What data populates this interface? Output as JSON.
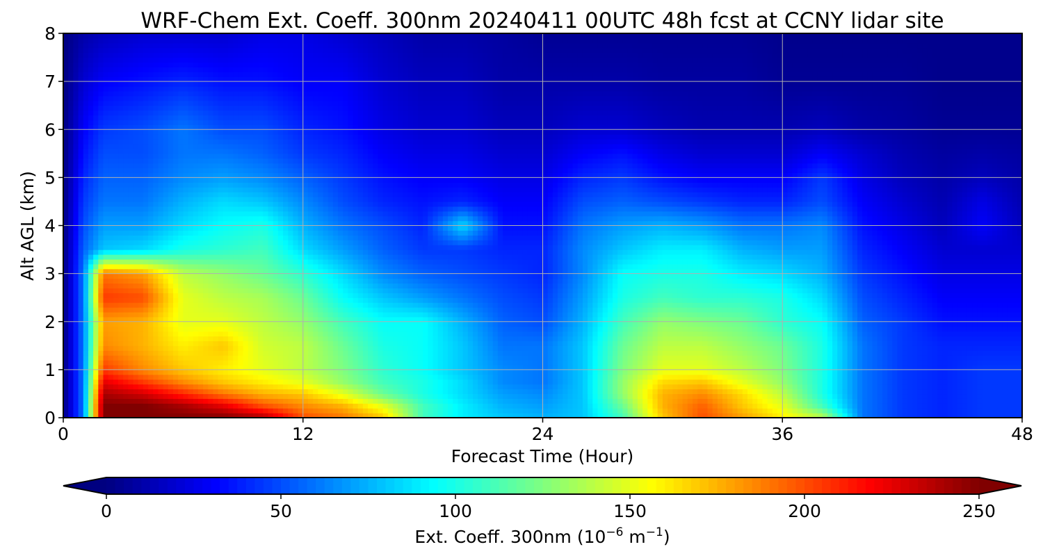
{
  "chart_data": {
    "type": "heatmap",
    "title": "WRF-Chem Ext. Coeff. 300nm  20240411 00UTC 48h fcst at CCNY lidar site",
    "xlabel": "Forecast Time (Hour)",
    "ylabel": "Alt AGL (km)",
    "xlim": [
      0,
      48
    ],
    "ylim": [
      0,
      8
    ],
    "xticks": [
      "0",
      "12",
      "24",
      "36",
      "48"
    ],
    "yticks": [
      "0",
      "1",
      "2",
      "3",
      "4",
      "5",
      "6",
      "7",
      "8"
    ],
    "grid": true,
    "colormap": "jet",
    "colorbar": {
      "label": "Ext. Coeff. 300nm  (10⁻⁶ m⁻¹)",
      "label_text": "Ext. Coeff. 300nm",
      "unit_base": "(10",
      "unit_exp1": "−6",
      "unit_mid": " m",
      "unit_exp2": "−1",
      "unit_end": ")",
      "range": [
        0,
        250
      ],
      "ticks": [
        "0",
        "50",
        "100",
        "150",
        "200",
        "250"
      ],
      "extend": "both",
      "orientation": "horizontal"
    },
    "z_units": "1e-6 m^-1",
    "x_hours": [
      0,
      1,
      2,
      4,
      6,
      8,
      10,
      12,
      14,
      16,
      18,
      20,
      22,
      24,
      26,
      28,
      30,
      32,
      34,
      36,
      38,
      40,
      42,
      44,
      46,
      48
    ],
    "y_km": [
      0,
      0.25,
      0.5,
      0.75,
      1,
      1.5,
      2,
      2.5,
      3,
      3.5,
      4,
      4.5,
      5,
      5.5,
      6,
      7,
      8
    ],
    "z": [
      [
        0,
        60,
        250,
        250,
        250,
        250,
        240,
        200,
        190,
        170,
        110,
        90,
        80,
        75,
        80,
        110,
        170,
        200,
        180,
        160,
        140,
        60,
        45,
        40,
        45,
        45
      ],
      [
        0,
        60,
        250,
        250,
        240,
        225,
        200,
        185,
        175,
        150,
        110,
        90,
        75,
        70,
        80,
        120,
        175,
        195,
        170,
        150,
        110,
        60,
        45,
        40,
        45,
        45
      ],
      [
        0,
        60,
        240,
        230,
        210,
        190,
        175,
        170,
        150,
        120,
        100,
        85,
        70,
        65,
        80,
        130,
        175,
        185,
        165,
        140,
        100,
        60,
        45,
        40,
        45,
        45
      ],
      [
        0,
        60,
        225,
        205,
        185,
        170,
        160,
        150,
        130,
        110,
        100,
        85,
        65,
        60,
        80,
        130,
        165,
        170,
        150,
        130,
        100,
        60,
        45,
        40,
        45,
        45
      ],
      [
        0,
        60,
        205,
        185,
        170,
        160,
        150,
        140,
        125,
        105,
        95,
        80,
        65,
        60,
        80,
        125,
        150,
        150,
        140,
        125,
        100,
        60,
        45,
        40,
        45,
        45
      ],
      [
        0,
        60,
        185,
        175,
        160,
        170,
        145,
        140,
        120,
        100,
        95,
        80,
        60,
        60,
        80,
        120,
        140,
        140,
        130,
        120,
        100,
        60,
        45,
        40,
        40,
        40
      ],
      [
        0,
        60,
        180,
        175,
        150,
        150,
        140,
        130,
        110,
        95,
        95,
        75,
        55,
        50,
        75,
        110,
        130,
        125,
        120,
        105,
        95,
        55,
        45,
        35,
        35,
        35
      ],
      [
        0,
        60,
        205,
        200,
        150,
        140,
        135,
        120,
        95,
        80,
        70,
        60,
        50,
        45,
        70,
        100,
        110,
        105,
        105,
        100,
        85,
        50,
        40,
        30,
        30,
        30
      ],
      [
        0,
        60,
        190,
        180,
        140,
        130,
        120,
        105,
        85,
        65,
        55,
        50,
        45,
        40,
        65,
        95,
        100,
        100,
        90,
        85,
        75,
        45,
        35,
        25,
        25,
        25
      ],
      [
        0,
        55,
        80,
        85,
        100,
        105,
        110,
        85,
        70,
        55,
        45,
        45,
        40,
        40,
        65,
        80,
        90,
        90,
        75,
        70,
        70,
        40,
        30,
        20,
        20,
        20
      ],
      [
        0,
        50,
        70,
        70,
        85,
        95,
        100,
        75,
        60,
        50,
        40,
        85,
        35,
        35,
        60,
        70,
        75,
        70,
        60,
        60,
        65,
        35,
        25,
        15,
        30,
        15
      ],
      [
        0,
        45,
        60,
        60,
        75,
        85,
        80,
        65,
        50,
        40,
        35,
        40,
        30,
        30,
        50,
        55,
        50,
        45,
        40,
        40,
        50,
        30,
        20,
        12,
        25,
        12
      ],
      [
        0,
        40,
        55,
        55,
        65,
        70,
        65,
        55,
        45,
        35,
        30,
        30,
        25,
        25,
        40,
        45,
        35,
        30,
        30,
        30,
        45,
        25,
        15,
        10,
        15,
        10
      ],
      [
        0,
        35,
        50,
        50,
        60,
        60,
        55,
        45,
        40,
        30,
        25,
        25,
        20,
        20,
        30,
        35,
        25,
        20,
        20,
        20,
        30,
        20,
        12,
        8,
        10,
        8
      ],
      [
        0,
        30,
        45,
        50,
        60,
        50,
        50,
        40,
        35,
        25,
        20,
        20,
        15,
        15,
        20,
        20,
        15,
        12,
        12,
        12,
        15,
        10,
        8,
        5,
        5,
        5
      ],
      [
        0,
        20,
        30,
        35,
        40,
        35,
        35,
        30,
        30,
        20,
        15,
        15,
        10,
        10,
        10,
        10,
        8,
        8,
        8,
        5,
        5,
        5,
        5,
        3,
        3,
        3
      ],
      [
        0,
        10,
        15,
        20,
        20,
        20,
        25,
        25,
        20,
        15,
        10,
        10,
        8,
        5,
        5,
        5,
        5,
        5,
        5,
        3,
        3,
        3,
        3,
        3,
        3,
        3
      ]
    ]
  }
}
